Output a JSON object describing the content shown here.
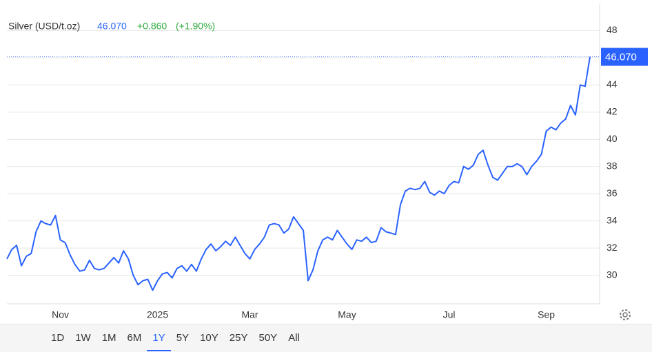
{
  "header": {
    "title": "Silver (USD/t.oz)",
    "price": "46.070",
    "change": "+0.860",
    "change_pct": "(+1.90%)"
  },
  "chart_data": {
    "type": "line",
    "categories": [
      null,
      null,
      null,
      null,
      null,
      null,
      null,
      null,
      null,
      null,
      null,
      "Nov",
      null,
      null,
      null,
      null,
      null,
      null,
      null,
      null,
      null,
      null,
      null,
      null,
      null,
      null,
      null,
      null,
      null,
      null,
      null,
      "2025",
      null,
      null,
      null,
      null,
      null,
      null,
      null,
      null,
      null,
      null,
      null,
      null,
      null,
      null,
      null,
      null,
      null,
      null,
      "Mar",
      null,
      null,
      null,
      null,
      null,
      null,
      null,
      null,
      null,
      null,
      null,
      null,
      null,
      null,
      null,
      null,
      null,
      null,
      null,
      "May",
      null,
      null,
      null,
      null,
      null,
      null,
      null,
      null,
      null,
      null,
      null,
      null,
      null,
      null,
      null,
      null,
      null,
      null,
      null,
      null,
      "Jul",
      null,
      null,
      null,
      null,
      null,
      null,
      null,
      null,
      null,
      null,
      null,
      null,
      null,
      null,
      null,
      null,
      null,
      null,
      null,
      "Sep",
      null,
      null,
      null,
      null,
      null,
      null,
      null,
      null,
      null
    ],
    "series": [
      {
        "color": "#2962ff",
        "values": [
          31.2,
          31.9,
          32.2,
          30.7,
          31.4,
          31.6,
          33.2,
          34.0,
          33.8,
          33.7,
          34.4,
          32.6,
          32.4,
          31.5,
          30.8,
          30.3,
          30.4,
          31.1,
          30.5,
          30.4,
          30.5,
          30.9,
          31.3,
          30.9,
          31.8,
          31.2,
          30.0,
          29.3,
          29.6,
          29.7,
          28.9,
          29.6,
          30.1,
          30.2,
          29.8,
          30.5,
          30.7,
          30.3,
          30.8,
          30.3,
          31.2,
          31.9,
          32.3,
          31.8,
          32.1,
          32.5,
          32.2,
          32.8,
          32.2,
          31.6,
          31.2,
          31.9,
          32.3,
          32.8,
          33.7,
          33.8,
          33.7,
          33.1,
          33.4,
          34.3,
          33.8,
          33.3,
          29.6,
          30.4,
          31.8,
          32.6,
          32.8,
          32.6,
          33.3,
          32.8,
          32.3,
          31.9,
          32.6,
          32.5,
          32.8,
          32.4,
          32.5,
          33.5,
          33.2,
          33.1,
          33.0,
          35.2,
          36.2,
          36.4,
          36.3,
          36.4,
          36.9,
          36.1,
          35.9,
          36.2,
          36.0,
          36.6,
          36.9,
          36.8,
          38.0,
          37.8,
          38.1,
          38.9,
          39.2,
          38.1,
          37.2,
          37.0,
          37.5,
          38.0,
          38.0,
          38.2,
          38.0,
          37.4,
          38.0,
          38.4,
          38.9,
          40.6,
          40.9,
          40.7,
          41.2,
          41.5,
          42.5,
          41.8,
          44.0,
          43.9,
          46.07
        ]
      }
    ],
    "price_tag": "46.070",
    "ylim": [
      27.9,
      50
    ],
    "yticks": [
      30,
      32,
      34,
      36,
      38,
      40,
      42,
      44,
      46,
      48
    ],
    "grid": true
  },
  "range_selector": {
    "options": [
      "1D",
      "1W",
      "1M",
      "6M",
      "1Y",
      "5Y",
      "10Y",
      "25Y",
      "50Y",
      "All"
    ],
    "selected_index": 4
  }
}
